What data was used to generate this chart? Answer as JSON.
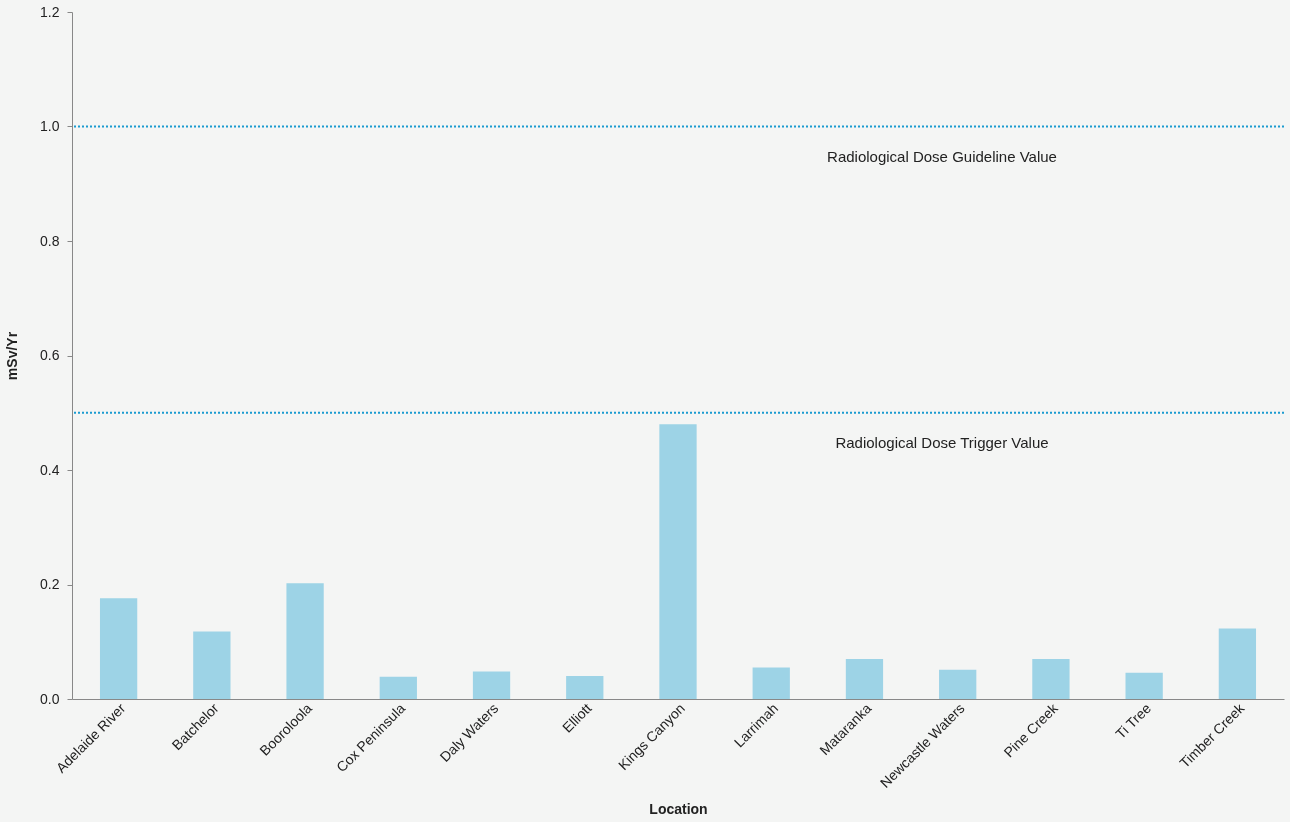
{
  "chart_data": {
    "type": "bar",
    "xlabel": "Location",
    "ylabel": "mSv/Yr",
    "categories": [
      "Adelaide River",
      "Batchelor",
      "Booroloola",
      "Cox Peninsula",
      "Daly Waters",
      "Elliott",
      "Kings Canyon",
      "Larrimah",
      "Mataranka",
      "Newcastle Waters",
      "Pine Creek",
      "Ti Tree",
      "Timber Creek"
    ],
    "values": [
      0.176,
      0.118,
      0.202,
      0.039,
      0.048,
      0.04,
      0.48,
      0.055,
      0.07,
      0.051,
      0.07,
      0.046,
      0.123
    ],
    "color": "#9dd3e6",
    "ylim": [
      0,
      1.2
    ],
    "yticks": [
      {
        "value": 0,
        "label": "0.0"
      },
      0.2,
      0.4,
      0.6,
      0.8,
      {
        "value": 1,
        "label": "1.0"
      },
      1.2
    ],
    "ref_lines": [
      {
        "axis": "y",
        "value": 1.0,
        "label": "Radiological Dose Guideline Value",
        "color": "#1a9bd0",
        "line_style": "dotted"
      },
      {
        "axis": "y",
        "value": 0.5,
        "label": "Radiological Dose Trigger Value",
        "color": "#1a9bd0",
        "line_style": "dotted"
      }
    ],
    "grid": false
  }
}
